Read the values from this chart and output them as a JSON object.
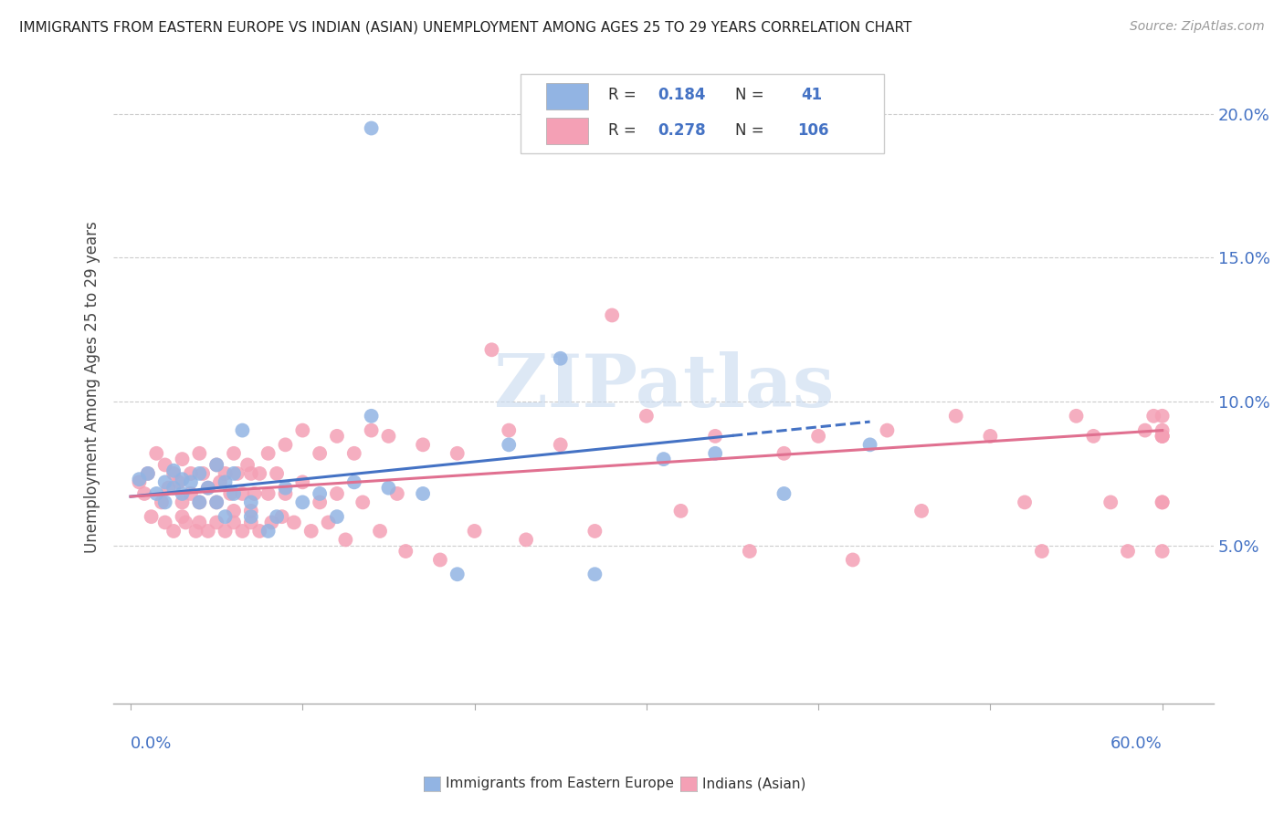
{
  "title": "IMMIGRANTS FROM EASTERN EUROPE VS INDIAN (ASIAN) UNEMPLOYMENT AMONG AGES 25 TO 29 YEARS CORRELATION CHART",
  "source": "Source: ZipAtlas.com",
  "ylabel": "Unemployment Among Ages 25 to 29 years",
  "color_blue": "#92b4e3",
  "color_pink": "#f4a0b5",
  "color_blue_line": "#4472c4",
  "color_pink_line": "#e07090",
  "color_blue_text": "#4472c4",
  "background_color": "#ffffff",
  "watermark": "ZIPatlas",
  "blue_x": [
    0.005,
    0.01,
    0.015,
    0.02,
    0.02,
    0.025,
    0.025,
    0.03,
    0.03,
    0.035,
    0.04,
    0.04,
    0.045,
    0.05,
    0.05,
    0.055,
    0.055,
    0.06,
    0.06,
    0.065,
    0.07,
    0.07,
    0.08,
    0.085,
    0.09,
    0.1,
    0.11,
    0.12,
    0.13,
    0.14,
    0.15,
    0.17,
    0.19,
    0.22,
    0.25,
    0.27,
    0.31,
    0.34,
    0.38,
    0.43,
    0.14
  ],
  "blue_y": [
    0.073,
    0.075,
    0.068,
    0.072,
    0.065,
    0.076,
    0.07,
    0.073,
    0.068,
    0.072,
    0.075,
    0.065,
    0.07,
    0.078,
    0.065,
    0.072,
    0.06,
    0.075,
    0.068,
    0.09,
    0.065,
    0.06,
    0.055,
    0.06,
    0.07,
    0.065,
    0.068,
    0.06,
    0.072,
    0.095,
    0.07,
    0.068,
    0.04,
    0.085,
    0.115,
    0.04,
    0.08,
    0.082,
    0.068,
    0.085,
    0.195
  ],
  "pink_x": [
    0.005,
    0.008,
    0.01,
    0.012,
    0.015,
    0.018,
    0.02,
    0.02,
    0.022,
    0.025,
    0.025,
    0.028,
    0.03,
    0.03,
    0.03,
    0.032,
    0.035,
    0.035,
    0.038,
    0.04,
    0.04,
    0.04,
    0.042,
    0.045,
    0.045,
    0.05,
    0.05,
    0.05,
    0.052,
    0.055,
    0.055,
    0.058,
    0.06,
    0.06,
    0.06,
    0.062,
    0.065,
    0.065,
    0.068,
    0.07,
    0.07,
    0.07,
    0.072,
    0.075,
    0.075,
    0.08,
    0.08,
    0.082,
    0.085,
    0.088,
    0.09,
    0.09,
    0.095,
    0.1,
    0.1,
    0.105,
    0.11,
    0.11,
    0.115,
    0.12,
    0.12,
    0.125,
    0.13,
    0.135,
    0.14,
    0.145,
    0.15,
    0.155,
    0.16,
    0.17,
    0.18,
    0.19,
    0.2,
    0.21,
    0.22,
    0.23,
    0.25,
    0.27,
    0.28,
    0.3,
    0.32,
    0.34,
    0.36,
    0.38,
    0.4,
    0.42,
    0.44,
    0.46,
    0.48,
    0.5,
    0.52,
    0.53,
    0.55,
    0.56,
    0.57,
    0.58,
    0.59,
    0.595,
    0.6,
    0.6,
    0.6,
    0.6,
    0.6,
    0.6,
    0.6,
    0.6
  ],
  "pink_y": [
    0.072,
    0.068,
    0.075,
    0.06,
    0.082,
    0.065,
    0.078,
    0.058,
    0.07,
    0.075,
    0.055,
    0.072,
    0.08,
    0.06,
    0.065,
    0.058,
    0.075,
    0.068,
    0.055,
    0.082,
    0.065,
    0.058,
    0.075,
    0.07,
    0.055,
    0.078,
    0.065,
    0.058,
    0.072,
    0.075,
    0.055,
    0.068,
    0.082,
    0.062,
    0.058,
    0.075,
    0.068,
    0.055,
    0.078,
    0.075,
    0.062,
    0.058,
    0.068,
    0.075,
    0.055,
    0.082,
    0.068,
    0.058,
    0.075,
    0.06,
    0.085,
    0.068,
    0.058,
    0.09,
    0.072,
    0.055,
    0.082,
    0.065,
    0.058,
    0.088,
    0.068,
    0.052,
    0.082,
    0.065,
    0.09,
    0.055,
    0.088,
    0.068,
    0.048,
    0.085,
    0.045,
    0.082,
    0.055,
    0.118,
    0.09,
    0.052,
    0.085,
    0.055,
    0.13,
    0.095,
    0.062,
    0.088,
    0.048,
    0.082,
    0.088,
    0.045,
    0.09,
    0.062,
    0.095,
    0.088,
    0.065,
    0.048,
    0.095,
    0.088,
    0.065,
    0.048,
    0.09,
    0.095,
    0.088,
    0.065,
    0.095,
    0.088,
    0.065,
    0.09,
    0.048,
    0.088
  ],
  "blue_line_x": [
    0.0,
    0.43
  ],
  "blue_line_solid_end": 0.35,
  "blue_line_y_start": 0.067,
  "blue_line_y_end": 0.093,
  "pink_line_x": [
    0.0,
    0.6
  ],
  "pink_line_y_start": 0.067,
  "pink_line_y_end": 0.09,
  "yticks": [
    0.05,
    0.1,
    0.15,
    0.2
  ],
  "ytick_labels": [
    "5.0%",
    "10.0%",
    "15.0%",
    "20.0%"
  ],
  "xticks": [
    0.0,
    0.1,
    0.2,
    0.3,
    0.4,
    0.5,
    0.6
  ],
  "xlim": [
    -0.01,
    0.63
  ],
  "ylim": [
    -0.005,
    0.215
  ]
}
